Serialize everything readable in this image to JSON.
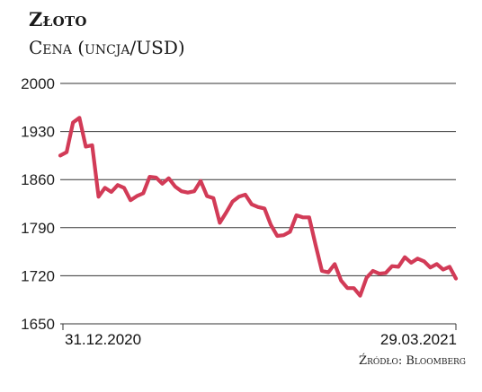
{
  "header": {
    "title": "Złoto",
    "subtitle": "Cena (uncja/USD)"
  },
  "footer": {
    "source": "Źródło: Bloomberg"
  },
  "colors": {
    "line": "#d23b57",
    "grid": "#333333",
    "text": "#1a1a1a"
  },
  "chart_data": {
    "type": "line",
    "title": "Złoto",
    "subtitle": "Cena (uncja/USD)",
    "xlabel": "",
    "ylabel": "",
    "ylim": [
      1650,
      2000
    ],
    "yticks": [
      2000,
      1930,
      1860,
      1790,
      1720,
      1650
    ],
    "xtick_labels": [
      "31.12.2020",
      "29.03.2021"
    ],
    "x_range": [
      "2020-12-31",
      "2021-03-29"
    ],
    "grid": true,
    "series": [
      {
        "values": [
          1895,
          1900,
          1943,
          1950,
          1908,
          1910,
          1835,
          1848,
          1842,
          1852,
          1848,
          1830,
          1836,
          1840,
          1864,
          1863,
          1854,
          1862,
          1850,
          1843,
          1841,
          1843,
          1858,
          1836,
          1833,
          1797,
          1812,
          1828,
          1835,
          1838,
          1824,
          1820,
          1818,
          1794,
          1778,
          1779,
          1784,
          1808,
          1805,
          1805,
          1765,
          1727,
          1725,
          1737,
          1713,
          1702,
          1702,
          1691,
          1717,
          1727,
          1723,
          1724,
          1734,
          1733,
          1747,
          1739,
          1745,
          1741,
          1732,
          1737,
          1729,
          1733,
          1716
        ]
      }
    ]
  }
}
